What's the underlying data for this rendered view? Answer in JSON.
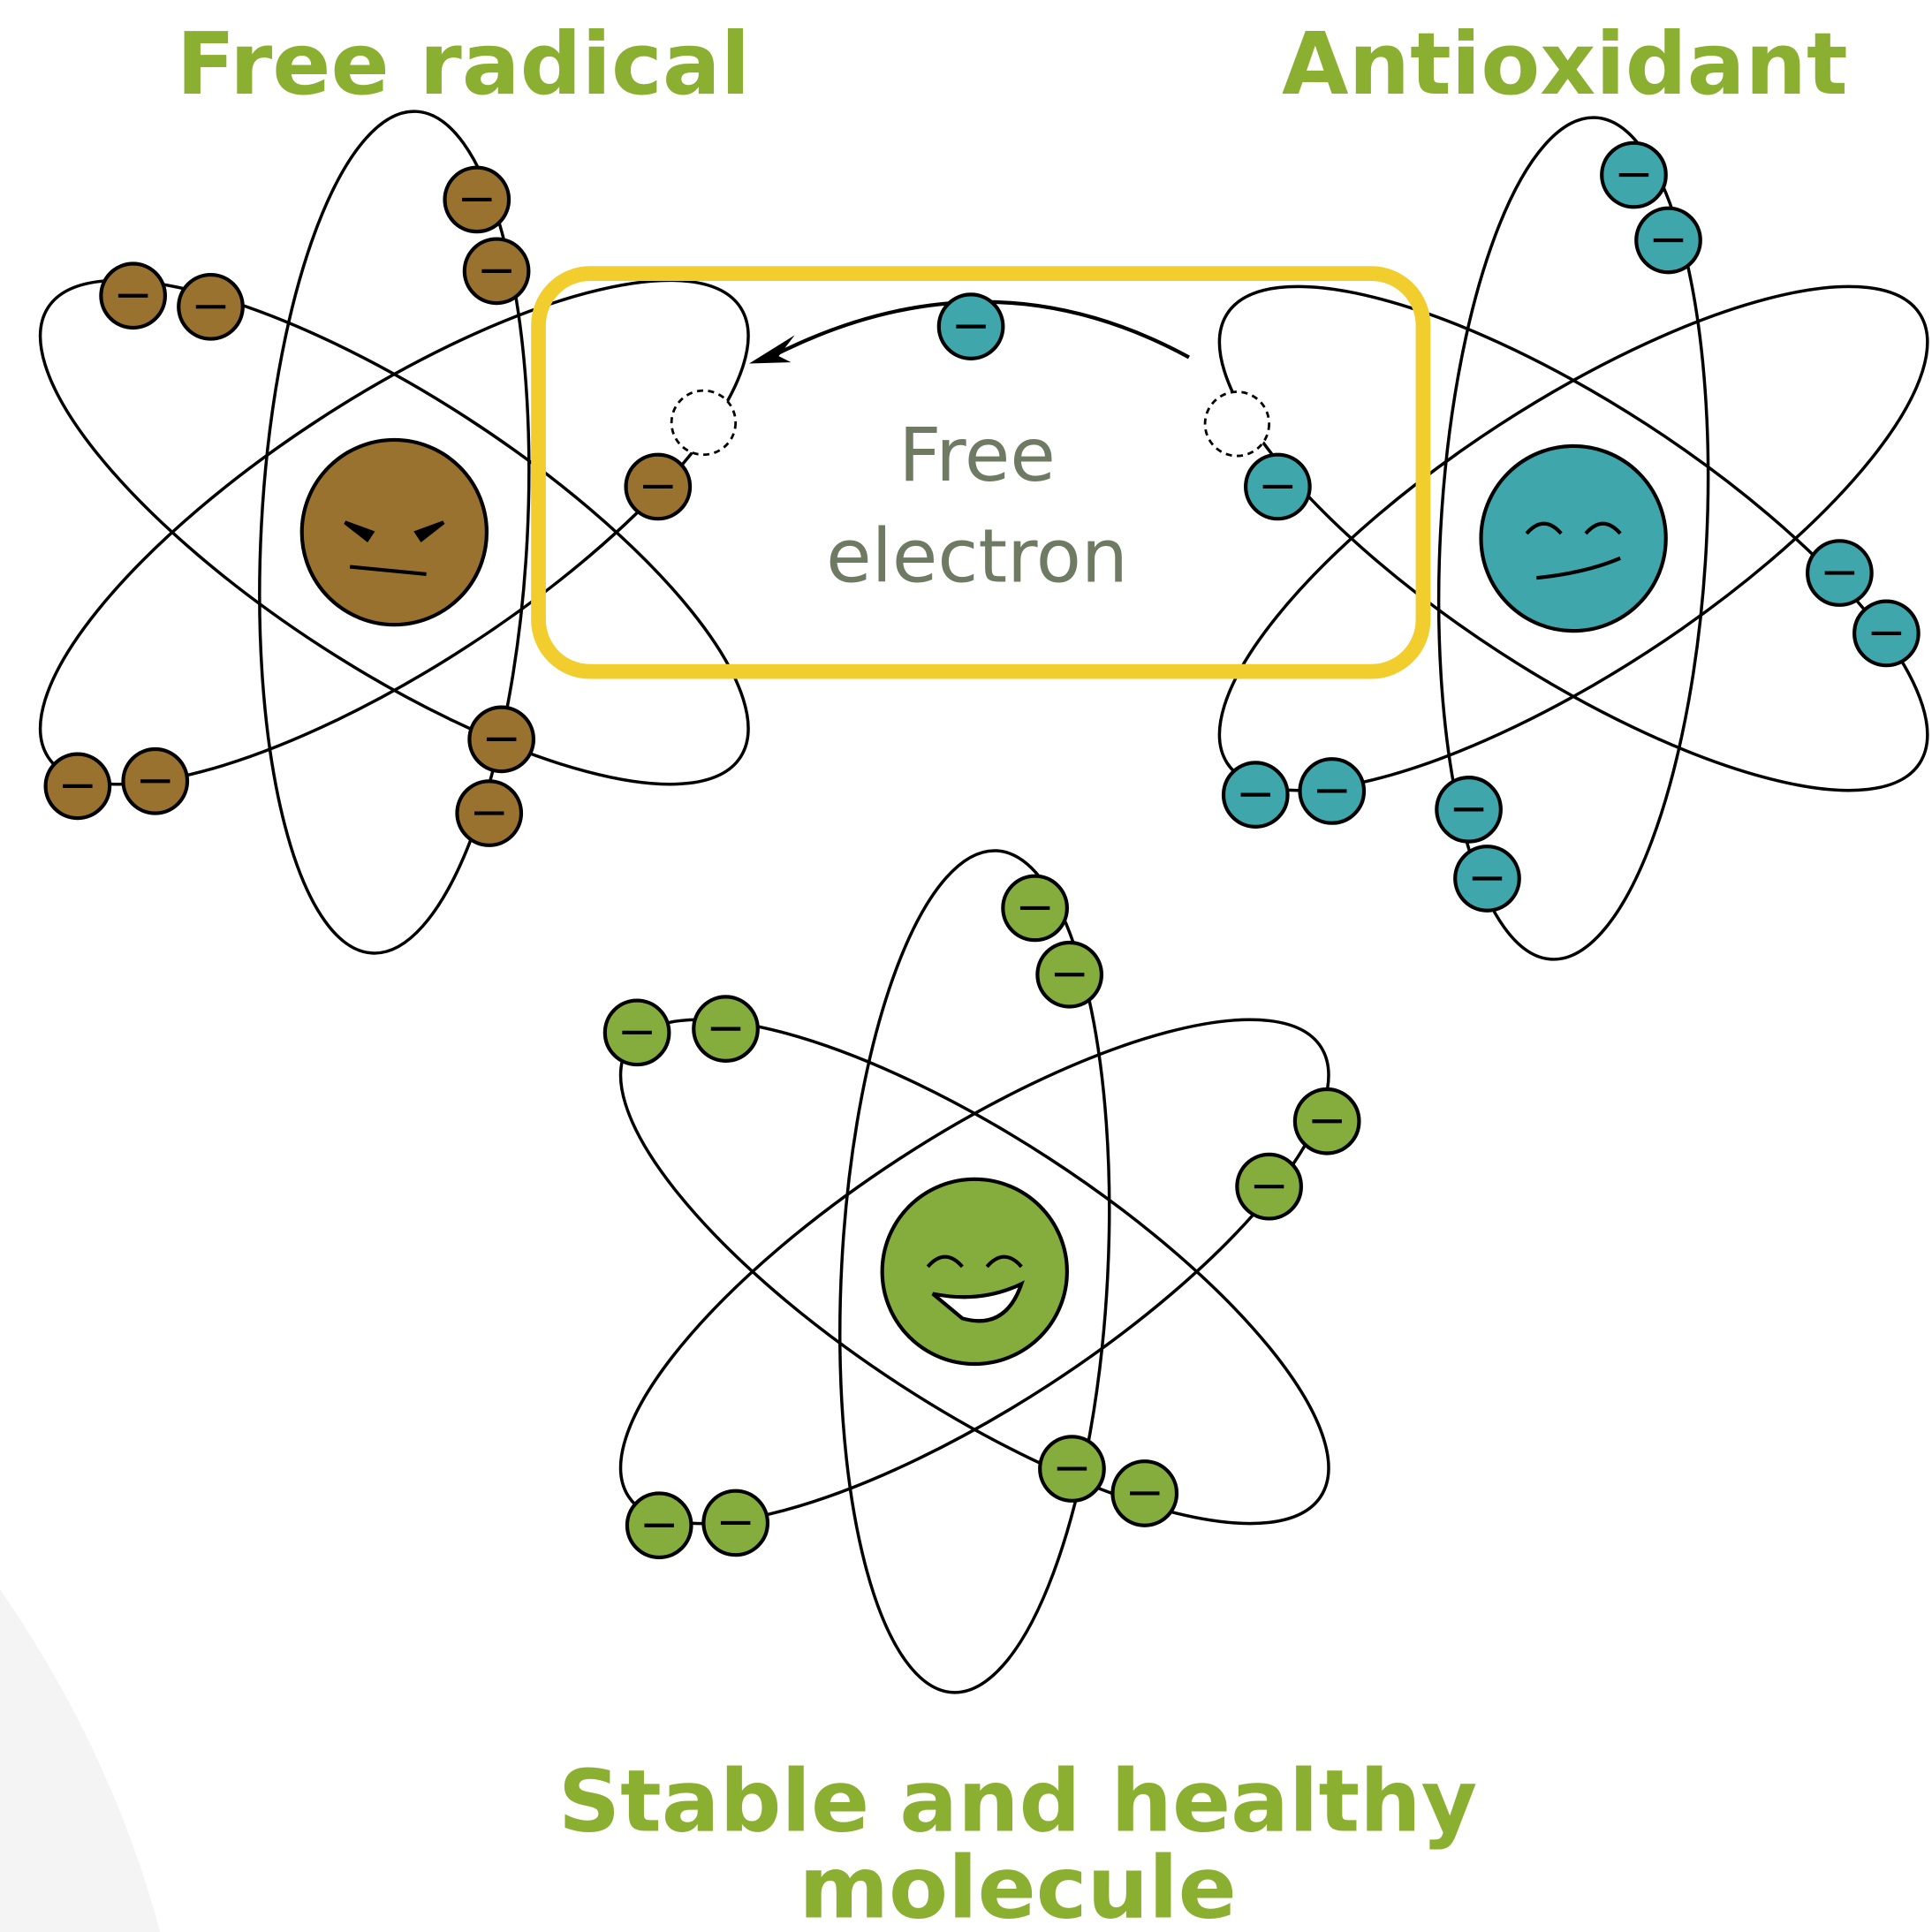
{
  "free_radical": {
    "title": "Free radical"
  },
  "antioxidant": {
    "title": "Antioxidant"
  },
  "transfer": {
    "label": [
      "Free",
      "electron"
    ]
  },
  "stable_molecule": {
    "title": [
      "Stable and healthy",
      "molecule"
    ]
  }
}
